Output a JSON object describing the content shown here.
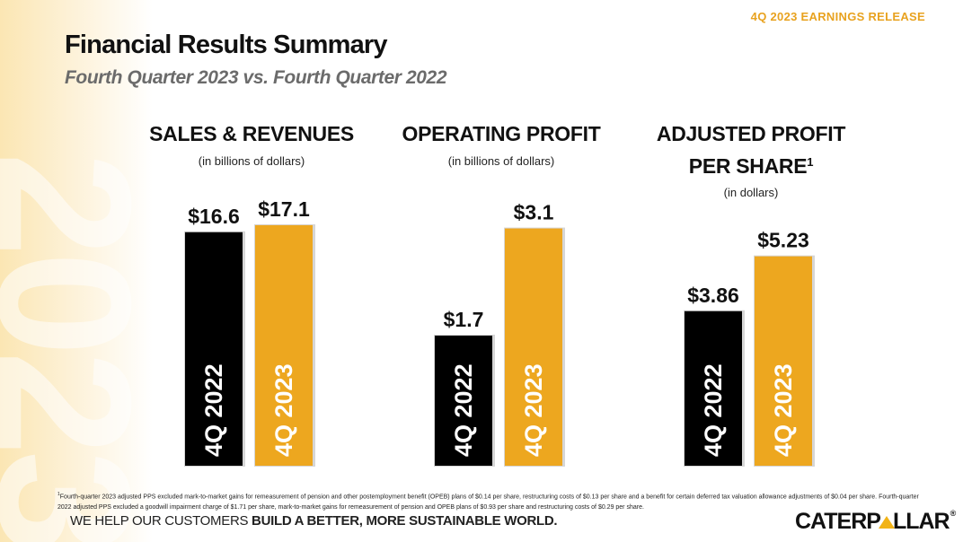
{
  "header": {
    "release_tag": "4Q 2023 EARNINGS RELEASE",
    "title": "Financial Results Summary",
    "subtitle": "Fourth Quarter 2023 vs. Fourth Quarter 2022",
    "background_watermark": "2023"
  },
  "colors": {
    "bar_2022": "#000000",
    "bar_2023": "#eda71f",
    "accent": "#e8a21f"
  },
  "chart_data": [
    {
      "type": "bar",
      "title": "SALES & REVENUES",
      "units": "(in billions of dollars)",
      "categories": [
        "4Q 2022",
        "4Q 2023"
      ],
      "values": [
        16.6,
        17.1
      ],
      "value_labels": [
        "$16.6",
        "$17.1"
      ],
      "ylim": [
        0,
        18.5
      ]
    },
    {
      "type": "bar",
      "title": "OPERATING PROFIT",
      "units": "(in billions of dollars)",
      "categories": [
        "4Q 2022",
        "4Q 2023"
      ],
      "values": [
        1.7,
        3.1
      ],
      "value_labels": [
        "$1.7",
        "$3.1"
      ],
      "ylim": [
        0,
        3.4
      ]
    },
    {
      "type": "bar",
      "title": "ADJUSTED PROFIT PER SHARE",
      "title_line1": "ADJUSTED PROFIT",
      "title_line2": "PER SHARE",
      "title_sup": "1",
      "units": "(in dollars)",
      "categories": [
        "4Q 2022",
        "4Q 2023"
      ],
      "values": [
        3.86,
        5.23
      ],
      "value_labels": [
        "$3.86",
        "$5.23"
      ],
      "ylim": [
        0,
        6.5
      ]
    }
  ],
  "footnote": {
    "marker": "1",
    "text": "Fourth-quarter 2023 adjusted PPS excluded mark-to-market gains for remeasurement of pension and other postemployment benefit (OPEB) plans of $0.14 per share, restructuring costs of $0.13 per share and a benefit for certain deferred tax valuation allowance adjustments of $0.04 per share. Fourth-quarter 2022 adjusted PPS excluded a goodwill impairment charge of $1.71 per share, mark-to-market gains for remeasurement of pension and OPEB plans of $0.93 per share and restructuring costs of $0.29 per share."
  },
  "footer": {
    "tagline_plain": "WE HELP OUR CUSTOMERS ",
    "tagline_bold": "BUILD A BETTER, MORE SUSTAINABLE WORLD.",
    "logo_before": "CATERP",
    "logo_after": "LLAR",
    "logo_reg": "®"
  }
}
